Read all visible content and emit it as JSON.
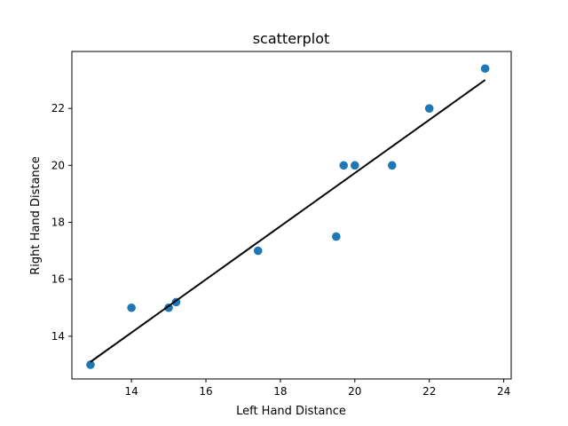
{
  "chart_data": {
    "type": "scatter",
    "title": "scatterplot",
    "xlabel": "Left Hand Distance",
    "ylabel": "Right Hand Distance",
    "xlim": [
      12.4,
      24.2
    ],
    "ylim": [
      12.5,
      24.0
    ],
    "xticks": [
      14,
      16,
      18,
      20,
      22,
      24
    ],
    "yticks": [
      14,
      16,
      18,
      20,
      22
    ],
    "grid": false,
    "legend": "none",
    "series": [
      {
        "kind": "scatter",
        "color": "#1f77b4",
        "points": [
          {
            "x": 12.9,
            "y": 13.0
          },
          {
            "x": 14.0,
            "y": 15.0
          },
          {
            "x": 15.0,
            "y": 15.0
          },
          {
            "x": 15.2,
            "y": 15.2
          },
          {
            "x": 17.4,
            "y": 17.0
          },
          {
            "x": 19.5,
            "y": 17.5
          },
          {
            "x": 19.7,
            "y": 20.0
          },
          {
            "x": 20.0,
            "y": 20.0
          },
          {
            "x": 21.0,
            "y": 20.0
          },
          {
            "x": 22.0,
            "y": 22.0
          },
          {
            "x": 23.5,
            "y": 23.4
          }
        ]
      },
      {
        "kind": "fit-line",
        "color": "#000000",
        "points": [
          {
            "x": 12.9,
            "y": 13.1
          },
          {
            "x": 23.5,
            "y": 23.0
          }
        ]
      }
    ]
  }
}
